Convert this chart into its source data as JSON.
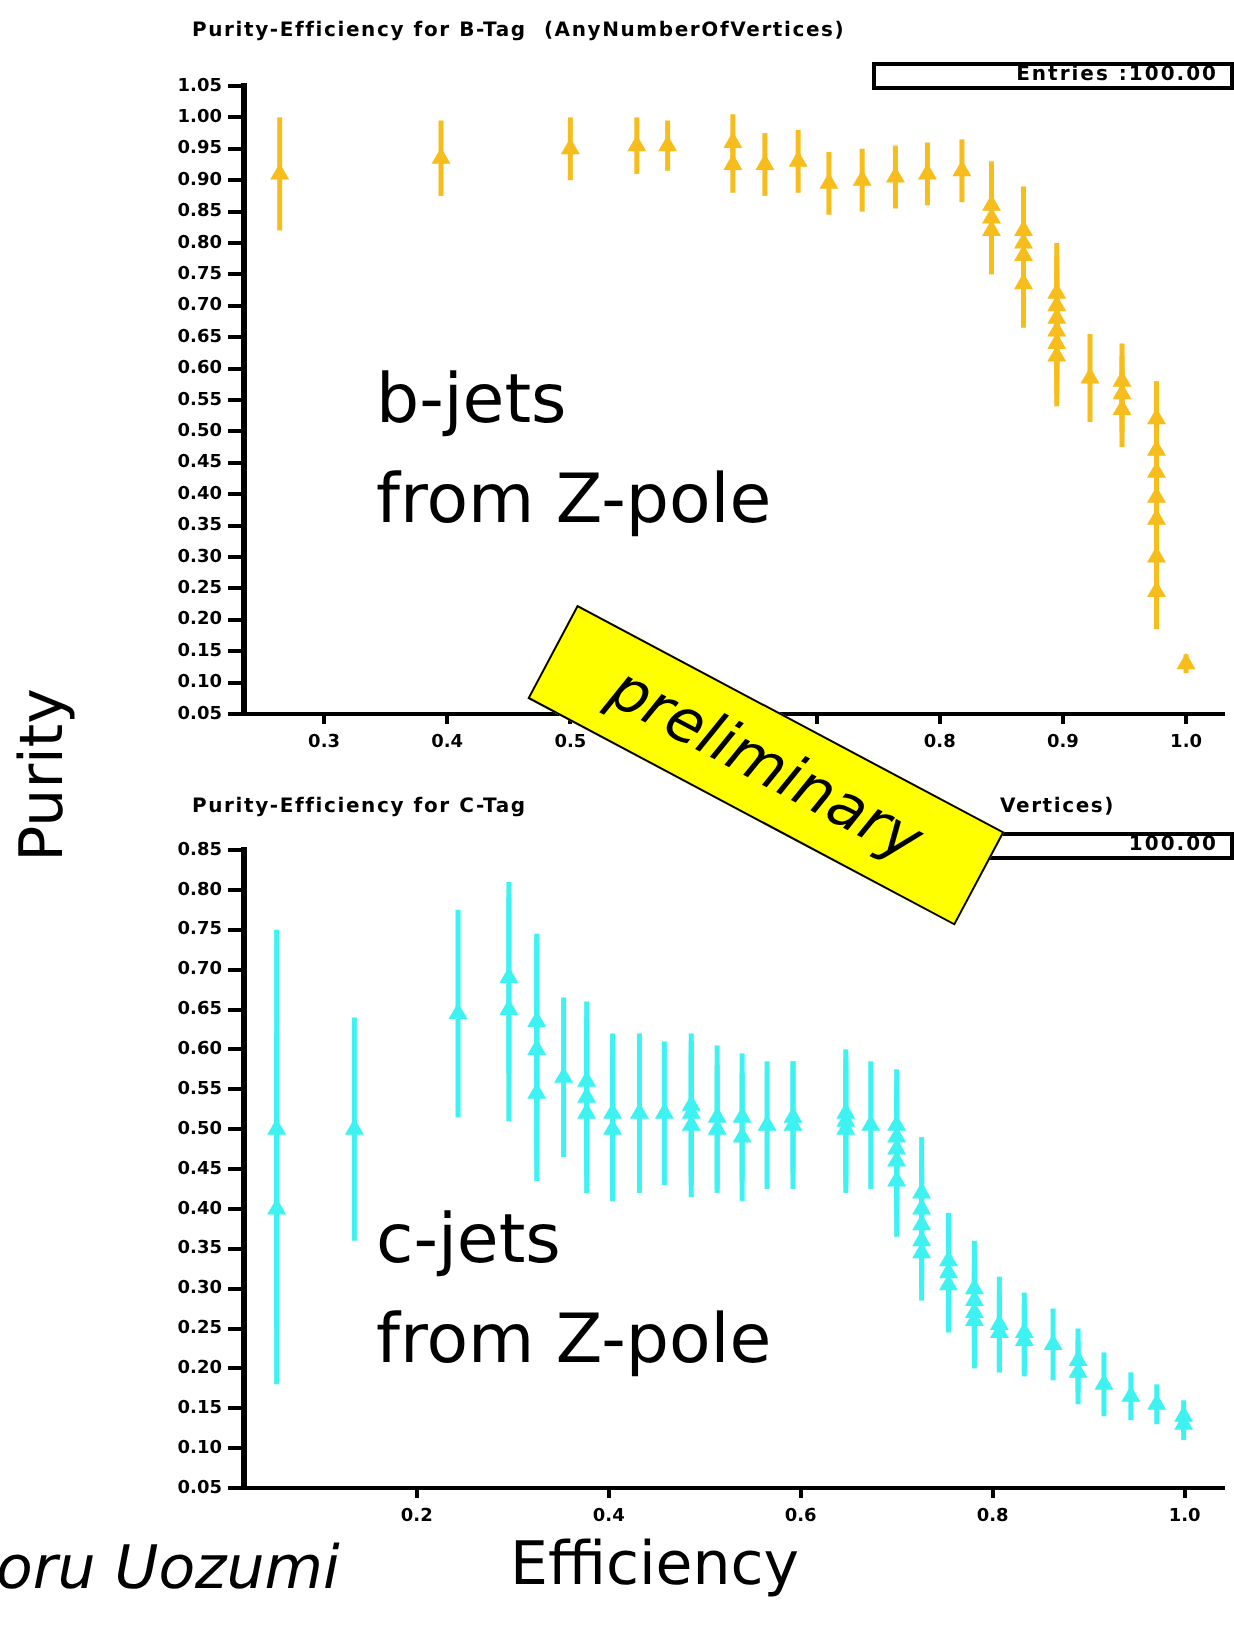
{
  "chart_data": [
    {
      "type": "scatter",
      "title": "Purity-Efficiency for B-Tag  (AnyNumberOfVertices)",
      "ylabel": "Purity",
      "annotations": [
        "Entries :100.00",
        "b-jets\nfrom Z-pole",
        "preliminary"
      ],
      "series": [
        {
          "color": "#f7bd1c",
          "x": [
            0.264,
            0.395,
            0.5,
            0.554,
            0.579,
            0.632,
            0.632,
            0.658,
            0.685,
            0.71,
            0.737,
            0.764,
            0.79,
            0.818,
            0.842,
            0.842,
            0.842,
            0.868,
            0.868,
            0.868,
            0.868,
            0.895,
            0.895,
            0.895,
            0.895,
            0.895,
            0.895,
            0.922,
            0.948,
            0.948,
            0.948,
            0.976,
            0.976,
            0.976,
            0.976,
            0.976,
            0.976,
            0.976,
            1.0
          ],
          "values": [
            0.91,
            0.935,
            0.95,
            0.955,
            0.955,
            0.96,
            0.925,
            0.925,
            0.93,
            0.895,
            0.9,
            0.905,
            0.91,
            0.915,
            0.86,
            0.84,
            0.82,
            0.82,
            0.8,
            0.78,
            0.735,
            0.72,
            0.7,
            0.68,
            0.66,
            0.64,
            0.62,
            0.585,
            0.58,
            0.56,
            0.535,
            0.52,
            0.47,
            0.435,
            0.395,
            0.36,
            0.3,
            0.245,
            0.13
          ],
          "errors": [
            0.09,
            0.06,
            0.05,
            0.045,
            0.04,
            0.045,
            0.045,
            0.05,
            0.05,
            0.05,
            0.05,
            0.05,
            0.05,
            0.05,
            0.07,
            0.07,
            0.07,
            0.07,
            0.07,
            0.07,
            0.07,
            0.08,
            0.08,
            0.08,
            0.08,
            0.08,
            0.08,
            0.07,
            0.06,
            0.06,
            0.06,
            0.06,
            0.06,
            0.06,
            0.06,
            0.06,
            0.06,
            0.06,
            0.015
          ]
        }
      ],
      "xlim": [
        0.235,
        1.03
      ],
      "xticks": [
        0.3,
        0.4,
        0.5,
        {
          "value": 0.6,
          "label": null
        },
        {
          "value": 0.7,
          "label": null
        },
        0.8,
        0.9,
        {
          "value": 1,
          "label": "1.0"
        }
      ],
      "ylim": [
        0.05,
        1.05
      ],
      "yticks": [
        0.05,
        {
          "value": 0.1,
          "label": "0.10"
        },
        0.15,
        {
          "value": 0.2,
          "label": "0.20"
        },
        0.25,
        {
          "value": 0.3,
          "label": "0.30"
        },
        0.35,
        {
          "value": 0.4,
          "label": "0.40"
        },
        0.45,
        {
          "value": 0.5,
          "label": "0.50"
        },
        0.55,
        {
          "value": 0.6,
          "label": "0.60"
        },
        0.65,
        {
          "value": 0.7,
          "label": "0.70"
        },
        0.75,
        {
          "value": 0.8,
          "label": "0.80"
        },
        0.85,
        {
          "value": 0.9,
          "label": "0.90"
        },
        0.95,
        {
          "value": 1,
          "label": "1.00"
        },
        1.05
      ],
      "marker": "triangle",
      "grid": false,
      "legend": false
    },
    {
      "type": "scatter",
      "title": "Purity-Efficiency for C-Tag",
      "xlabel": "Efficiency",
      "annotations": [
        "100.00",
        "c-jets\nfrom Z-pole",
        "oru Uozumi",
        "Vertices)"
      ],
      "series": [
        {
          "color": "#3ef2f2",
          "x": [
            0.054,
            0.054,
            0.135,
            0.243,
            0.296,
            0.296,
            0.325,
            0.325,
            0.325,
            0.353,
            0.377,
            0.377,
            0.377,
            0.404,
            0.404,
            0.432,
            0.458,
            0.486,
            0.486,
            0.486,
            0.513,
            0.513,
            0.539,
            0.539,
            0.565,
            0.592,
            0.592,
            0.647,
            0.647,
            0.647,
            0.673,
            0.7,
            0.7,
            0.7,
            0.7,
            0.7,
            0.726,
            0.726,
            0.726,
            0.726,
            0.726,
            0.754,
            0.754,
            0.754,
            0.781,
            0.781,
            0.781,
            0.781,
            0.807,
            0.807,
            0.833,
            0.833,
            0.863,
            0.889,
            0.889,
            0.916,
            0.944,
            0.971,
            0.999,
            0.999
          ],
          "values": [
            0.5,
            0.4,
            0.5,
            0.645,
            0.69,
            0.65,
            0.635,
            0.6,
            0.545,
            0.565,
            0.56,
            0.54,
            0.52,
            0.52,
            0.5,
            0.52,
            0.52,
            0.53,
            0.52,
            0.505,
            0.515,
            0.5,
            0.515,
            0.49,
            0.505,
            0.515,
            0.505,
            0.52,
            0.51,
            0.5,
            0.505,
            0.505,
            0.49,
            0.475,
            0.46,
            0.435,
            0.42,
            0.4,
            0.38,
            0.36,
            0.345,
            0.335,
            0.32,
            0.305,
            0.3,
            0.285,
            0.27,
            0.26,
            0.255,
            0.245,
            0.245,
            0.235,
            0.23,
            0.21,
            0.195,
            0.18,
            0.165,
            0.155,
            0.14,
            0.13
          ],
          "errors": [
            0.25,
            0.22,
            0.14,
            0.13,
            0.12,
            0.14,
            0.11,
            0.14,
            0.11,
            0.1,
            0.1,
            0.1,
            0.1,
            0.1,
            0.09,
            0.1,
            0.09,
            0.09,
            0.09,
            0.09,
            0.09,
            0.08,
            0.08,
            0.08,
            0.08,
            0.07,
            0.08,
            0.08,
            0.08,
            0.08,
            0.08,
            0.07,
            0.07,
            0.07,
            0.07,
            0.07,
            0.07,
            0.06,
            0.06,
            0.06,
            0.06,
            0.06,
            0.06,
            0.06,
            0.06,
            0.06,
            0.06,
            0.06,
            0.06,
            0.05,
            0.05,
            0.045,
            0.045,
            0.04,
            0.04,
            0.04,
            0.03,
            0.025,
            0.02,
            0.02
          ]
        }
      ],
      "xlim": [
        0.02,
        1.04
      ],
      "xticks": [
        {
          "value": 0.2,
          "label": "0.2"
        },
        {
          "value": 0.4,
          "label": "0.4"
        },
        {
          "value": 0.6,
          "label": "0.6"
        },
        {
          "value": 0.8,
          "label": "0.8"
        },
        {
          "value": 1,
          "label": "1.0"
        }
      ],
      "ylim": [
        0.05,
        0.85
      ],
      "yticks": [
        0.05,
        {
          "value": 0.1,
          "label": "0.10"
        },
        0.15,
        {
          "value": 0.2,
          "label": "0.20"
        },
        0.25,
        {
          "value": 0.3,
          "label": "0.30"
        },
        0.35,
        {
          "value": 0.4,
          "label": "0.40"
        },
        0.45,
        {
          "value": 0.5,
          "label": "0.50"
        },
        0.55,
        {
          "value": 0.6,
          "label": "0.60"
        },
        0.65,
        {
          "value": 0.7,
          "label": "0.70"
        },
        0.75,
        {
          "value": 0.8,
          "label": "0.80"
        },
        0.85
      ],
      "marker": "triangle",
      "grid": false,
      "legend": false
    }
  ]
}
